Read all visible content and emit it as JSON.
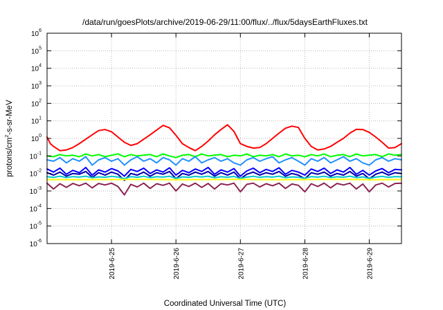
{
  "chart_data": {
    "type": "line",
    "title": "/data/run/goesPlots/archive/2019-06-29/11:00/flux/../flux/5daysEarthFluxes.txt",
    "xlabel": "Coordinated Universal Time (UTC)",
    "ylabel": {
      "prefix": "protons/cm",
      "sup": "2",
      "suffix": "-s-sr-MeV"
    },
    "x_unit": "days since 2019-06-24 00:00 UTC",
    "xlim": [
      0.0,
      5.5
    ],
    "x_ticks": [
      {
        "value": 1,
        "label": "2019-6-25"
      },
      {
        "value": 2,
        "label": "2019-6-26"
      },
      {
        "value": 3,
        "label": "2019-6-27"
      },
      {
        "value": 4,
        "label": "2019-6-28"
      },
      {
        "value": 5,
        "label": "2019-6-29"
      }
    ],
    "y_scale": "log",
    "ylim": [
      1e-06,
      1000000.0
    ],
    "y_ticks": [
      {
        "value": 1000000.0,
        "base": "10",
        "exp": "6"
      },
      {
        "value": 100000.0,
        "base": "10",
        "exp": "5"
      },
      {
        "value": 10000.0,
        "base": "10",
        "exp": "4"
      },
      {
        "value": 1000.0,
        "base": "10",
        "exp": "3"
      },
      {
        "value": 100.0,
        "base": "10",
        "exp": "2"
      },
      {
        "value": 10.0,
        "base": "10",
        "exp": "1"
      },
      {
        "value": 1.0,
        "base": "10",
        "exp": "0"
      },
      {
        "value": 0.1,
        "base": "10",
        "exp": "-1"
      },
      {
        "value": 0.01,
        "base": "10",
        "exp": "-2"
      },
      {
        "value": 0.001,
        "base": "10",
        "exp": "-3"
      },
      {
        "value": 0.0001,
        "base": "10",
        "exp": "-4"
      },
      {
        "value": 1e-05,
        "base": "10",
        "exp": "-5"
      },
      {
        "value": 1e-06,
        "base": "10",
        "exp": "-6"
      }
    ],
    "grid": true,
    "legend": "none",
    "series": [
      {
        "color": "#ff0000",
        "x": [
          0.0,
          0.05,
          0.1,
          0.2,
          0.3,
          0.4,
          0.5,
          0.6,
          0.7,
          0.8,
          0.9,
          1.0,
          1.1,
          1.2,
          1.3,
          1.4,
          1.5,
          1.6,
          1.7,
          1.8,
          1.9,
          2.0,
          2.1,
          2.2,
          2.3,
          2.4,
          2.5,
          2.6,
          2.7,
          2.8,
          2.9,
          3.0,
          3.1,
          3.2,
          3.3,
          3.4,
          3.5,
          3.6,
          3.7,
          3.8,
          3.9,
          4.0,
          4.1,
          4.2,
          4.3,
          4.4,
          4.5,
          4.6,
          4.7,
          4.8,
          4.9,
          5.0,
          5.1,
          5.2,
          5.3,
          5.4,
          5.5
        ],
        "y": [
          1.2,
          0.5,
          0.35,
          0.2,
          0.22,
          0.3,
          0.5,
          0.9,
          1.6,
          2.8,
          3.2,
          2.4,
          1.2,
          0.6,
          0.4,
          0.5,
          0.9,
          1.6,
          3.0,
          5.5,
          4.0,
          1.5,
          0.5,
          0.3,
          0.2,
          0.35,
          0.7,
          1.6,
          3.2,
          6.0,
          2.5,
          0.5,
          0.35,
          0.28,
          0.3,
          0.5,
          1.0,
          2.0,
          3.8,
          5.0,
          4.2,
          1.0,
          0.35,
          0.22,
          0.25,
          0.35,
          0.6,
          1.0,
          2.0,
          3.3,
          3.2,
          2.2,
          1.2,
          0.6,
          0.28,
          0.3,
          0.5
        ]
      },
      {
        "color": "#00ff00",
        "x": [
          0.0,
          0.1,
          0.2,
          0.3,
          0.4,
          0.5,
          0.6,
          0.7,
          0.8,
          0.9,
          1.0,
          1.1,
          1.2,
          1.3,
          1.4,
          1.5,
          1.6,
          1.7,
          1.8,
          1.9,
          2.0,
          2.1,
          2.2,
          2.3,
          2.4,
          2.5,
          2.6,
          2.7,
          2.8,
          2.9,
          3.0,
          3.1,
          3.2,
          3.3,
          3.4,
          3.5,
          3.6,
          3.7,
          3.8,
          3.9,
          4.0,
          4.1,
          4.2,
          4.3,
          4.4,
          4.5,
          4.6,
          4.7,
          4.8,
          4.9,
          5.0,
          5.1,
          5.2,
          5.3,
          5.4,
          5.5
        ],
        "y": [
          0.1,
          0.09,
          0.12,
          0.1,
          0.11,
          0.09,
          0.13,
          0.1,
          0.12,
          0.09,
          0.11,
          0.13,
          0.09,
          0.12,
          0.1,
          0.11,
          0.12,
          0.09,
          0.13,
          0.1,
          0.08,
          0.11,
          0.12,
          0.09,
          0.13,
          0.1,
          0.11,
          0.12,
          0.09,
          0.11,
          0.1,
          0.13,
          0.09,
          0.11,
          0.1,
          0.12,
          0.09,
          0.13,
          0.1,
          0.11,
          0.09,
          0.12,
          0.1,
          0.13,
          0.09,
          0.11,
          0.12,
          0.09,
          0.13,
          0.1,
          0.11,
          0.12,
          0.09,
          0.13,
          0.11,
          0.12
        ]
      },
      {
        "color": "#1e90ff",
        "x": [
          0.0,
          0.1,
          0.2,
          0.3,
          0.4,
          0.5,
          0.6,
          0.7,
          0.8,
          0.9,
          1.0,
          1.1,
          1.2,
          1.3,
          1.4,
          1.5,
          1.6,
          1.7,
          1.8,
          1.9,
          2.0,
          2.1,
          2.2,
          2.3,
          2.4,
          2.5,
          2.6,
          2.7,
          2.8,
          2.9,
          3.0,
          3.1,
          3.2,
          3.3,
          3.4,
          3.5,
          3.6,
          3.7,
          3.8,
          3.9,
          4.0,
          4.1,
          4.2,
          4.3,
          4.4,
          4.5,
          4.6,
          4.7,
          4.8,
          4.9,
          5.0,
          5.1,
          5.2,
          5.3,
          5.4,
          5.5
        ],
        "y": [
          0.06,
          0.05,
          0.08,
          0.04,
          0.07,
          0.05,
          0.09,
          0.03,
          0.06,
          0.08,
          0.05,
          0.07,
          0.03,
          0.06,
          0.09,
          0.05,
          0.07,
          0.04,
          0.08,
          0.06,
          0.03,
          0.07,
          0.05,
          0.09,
          0.04,
          0.06,
          0.08,
          0.05,
          0.07,
          0.04,
          0.03,
          0.06,
          0.08,
          0.05,
          0.07,
          0.09,
          0.04,
          0.06,
          0.08,
          0.05,
          0.03,
          0.07,
          0.05,
          0.08,
          0.04,
          0.06,
          0.09,
          0.05,
          0.07,
          0.04,
          0.03,
          0.06,
          0.08,
          0.05,
          0.07,
          0.06
        ]
      },
      {
        "color": "#0000ff",
        "x": [
          0.0,
          0.1,
          0.2,
          0.3,
          0.4,
          0.5,
          0.6,
          0.7,
          0.8,
          0.9,
          1.0,
          1.1,
          1.2,
          1.3,
          1.4,
          1.5,
          1.6,
          1.7,
          1.8,
          1.9,
          2.0,
          2.1,
          2.2,
          2.3,
          2.4,
          2.5,
          2.6,
          2.7,
          2.8,
          2.9,
          3.0,
          3.1,
          3.2,
          3.3,
          3.4,
          3.5,
          3.6,
          3.7,
          3.8,
          3.9,
          4.0,
          4.1,
          4.2,
          4.3,
          4.4,
          4.5,
          4.6,
          4.7,
          4.8,
          4.9,
          5.0,
          5.1,
          5.2,
          5.3,
          5.4,
          5.5
        ],
        "y": [
          0.018,
          0.012,
          0.02,
          0.009,
          0.015,
          0.011,
          0.022,
          0.008,
          0.016,
          0.012,
          0.019,
          0.014,
          0.007,
          0.017,
          0.013,
          0.02,
          0.01,
          0.016,
          0.012,
          0.021,
          0.008,
          0.015,
          0.011,
          0.018,
          0.013,
          0.022,
          0.009,
          0.016,
          0.012,
          0.019,
          0.007,
          0.014,
          0.02,
          0.011,
          0.017,
          0.013,
          0.021,
          0.009,
          0.015,
          0.012,
          0.008,
          0.018,
          0.013,
          0.02,
          0.01,
          0.016,
          0.012,
          0.022,
          0.009,
          0.015,
          0.008,
          0.014,
          0.019,
          0.011,
          0.017,
          0.016
        ]
      },
      {
        "color": "#0000b0",
        "x": [
          0.0,
          0.1,
          0.2,
          0.3,
          0.4,
          0.5,
          0.6,
          0.7,
          0.8,
          0.9,
          1.0,
          1.1,
          1.2,
          1.3,
          1.4,
          1.5,
          1.6,
          1.7,
          1.8,
          1.9,
          2.0,
          2.1,
          2.2,
          2.3,
          2.4,
          2.5,
          2.6,
          2.7,
          2.8,
          2.9,
          3.0,
          3.1,
          3.2,
          3.3,
          3.4,
          3.5,
          3.6,
          3.7,
          3.8,
          3.9,
          4.0,
          4.1,
          4.2,
          4.3,
          4.4,
          4.5,
          4.6,
          4.7,
          4.8,
          4.9,
          5.0,
          5.1,
          5.2,
          5.3,
          5.4,
          5.5
        ],
        "y": [
          0.011,
          0.008,
          0.012,
          0.007,
          0.01,
          0.009,
          0.013,
          0.006,
          0.011,
          0.008,
          0.012,
          0.009,
          0.004,
          0.01,
          0.008,
          0.012,
          0.007,
          0.011,
          0.009,
          0.013,
          0.005,
          0.01,
          0.008,
          0.012,
          0.009,
          0.013,
          0.007,
          0.011,
          0.008,
          0.012,
          0.005,
          0.009,
          0.012,
          0.008,
          0.011,
          0.009,
          0.013,
          0.007,
          0.01,
          0.008,
          0.005,
          0.011,
          0.009,
          0.012,
          0.007,
          0.01,
          0.008,
          0.013,
          0.007,
          0.01,
          0.005,
          0.009,
          0.012,
          0.008,
          0.011,
          0.01
        ]
      },
      {
        "color": "#00c8c8",
        "x": [
          0.0,
          0.1,
          0.2,
          0.3,
          0.4,
          0.5,
          0.6,
          0.7,
          0.8,
          0.9,
          1.0,
          1.1,
          1.2,
          1.3,
          1.4,
          1.5,
          1.6,
          1.7,
          1.8,
          1.9,
          2.0,
          2.1,
          2.2,
          2.3,
          2.4,
          2.5,
          2.6,
          2.7,
          2.8,
          2.9,
          3.0,
          3.1,
          3.2,
          3.3,
          3.4,
          3.5,
          3.6,
          3.7,
          3.8,
          3.9,
          4.0,
          4.1,
          4.2,
          4.3,
          4.4,
          4.5,
          4.6,
          4.7,
          4.8,
          4.9,
          5.0,
          5.1,
          5.2,
          5.3,
          5.4,
          5.5
        ],
        "y": [
          0.0065,
          0.006,
          0.007,
          0.0058,
          0.0066,
          0.0062,
          0.007,
          0.0057,
          0.0064,
          0.0061,
          0.0068,
          0.0063,
          0.005,
          0.0066,
          0.0061,
          0.0069,
          0.0058,
          0.0065,
          0.0062,
          0.007,
          0.0052,
          0.0064,
          0.006,
          0.0068,
          0.0063,
          0.007,
          0.0057,
          0.0065,
          0.0061,
          0.0068,
          0.0052,
          0.0062,
          0.0069,
          0.006,
          0.0066,
          0.0062,
          0.007,
          0.0058,
          0.0064,
          0.0061,
          0.0053,
          0.0066,
          0.0062,
          0.0069,
          0.0058,
          0.0065,
          0.0061,
          0.007,
          0.0058,
          0.0064,
          0.0052,
          0.0062,
          0.0068,
          0.006,
          0.0066,
          0.0065
        ]
      },
      {
        "color": "#ffff00",
        "x": [
          0.0,
          0.5,
          1.0,
          1.5,
          2.0,
          2.5,
          3.0,
          3.5,
          4.0,
          4.5,
          5.0,
          5.5
        ],
        "y": [
          0.0045,
          0.0044,
          0.0045,
          0.0046,
          0.0044,
          0.0045,
          0.0046,
          0.0044,
          0.0045,
          0.0046,
          0.0044,
          0.0045
        ]
      },
      {
        "color": "#8b2252",
        "x": [
          0.0,
          0.1,
          0.2,
          0.3,
          0.4,
          0.5,
          0.6,
          0.7,
          0.8,
          0.9,
          1.0,
          1.1,
          1.2,
          1.3,
          1.4,
          1.5,
          1.6,
          1.7,
          1.8,
          1.9,
          2.0,
          2.1,
          2.2,
          2.3,
          2.4,
          2.5,
          2.6,
          2.7,
          2.8,
          2.9,
          3.0,
          3.1,
          3.2,
          3.3,
          3.4,
          3.5,
          3.6,
          3.7,
          3.8,
          3.9,
          4.0,
          4.1,
          4.2,
          4.3,
          4.4,
          4.5,
          4.6,
          4.7,
          4.8,
          4.9,
          5.0,
          5.1,
          5.2,
          5.3,
          5.4,
          5.5
        ],
        "y": [
          0.0028,
          0.0013,
          0.0026,
          0.0016,
          0.0027,
          0.002,
          0.0028,
          0.0015,
          0.0027,
          0.0022,
          0.0028,
          0.0018,
          0.0006,
          0.0024,
          0.0017,
          0.0028,
          0.0014,
          0.0026,
          0.0021,
          0.0028,
          0.001,
          0.0025,
          0.0018,
          0.0028,
          0.0016,
          0.0027,
          0.0013,
          0.0026,
          0.0022,
          0.0028,
          0.0009,
          0.0024,
          0.0028,
          0.0017,
          0.0026,
          0.002,
          0.0028,
          0.0014,
          0.0025,
          0.0021,
          0.0009,
          0.0026,
          0.0018,
          0.0028,
          0.0015,
          0.0027,
          0.0022,
          0.0028,
          0.0013,
          0.0025,
          0.0009,
          0.0022,
          0.0028,
          0.0017,
          0.0027,
          0.0028
        ]
      }
    ]
  }
}
